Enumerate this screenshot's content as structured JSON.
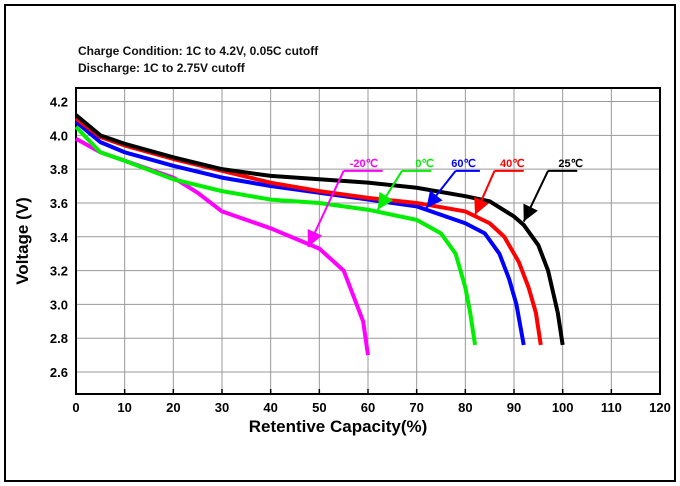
{
  "chart_data": {
    "type": "line",
    "notes": [
      "Charge Condition: 1C to 4.2V, 0.05C cutoff",
      "Discharge: 1C to 2.75V cutoff"
    ],
    "xlabel": "Retentive Capacity(%)",
    "ylabel": "Voltage (V)",
    "xlim": [
      0,
      120
    ],
    "ylim": [
      2.47,
      4.28
    ],
    "xticks": [
      0,
      10,
      20,
      30,
      40,
      50,
      60,
      70,
      80,
      90,
      100,
      110,
      120
    ],
    "yticks": [
      2.6,
      2.8,
      3.0,
      3.2,
      3.4,
      3.6,
      3.8,
      4.0,
      4.2
    ],
    "grid": true,
    "series": [
      {
        "name": "25℃",
        "color": "#000000",
        "points": [
          [
            0,
            4.12
          ],
          [
            5,
            4.0
          ],
          [
            10,
            3.95
          ],
          [
            20,
            3.87
          ],
          [
            30,
            3.8
          ],
          [
            40,
            3.76
          ],
          [
            50,
            3.74
          ],
          [
            60,
            3.72
          ],
          [
            70,
            3.69
          ],
          [
            80,
            3.64
          ],
          [
            85,
            3.61
          ],
          [
            90,
            3.52
          ],
          [
            92,
            3.47
          ],
          [
            95,
            3.35
          ],
          [
            97,
            3.2
          ],
          [
            99,
            2.95
          ],
          [
            100,
            2.76
          ]
        ],
        "label_pos": [
          100,
          3.79
        ],
        "arrow": [
          [
            97,
            3.79
          ],
          [
            103,
            3.79
          ],
          [
            92,
            3.49
          ]
        ]
      },
      {
        "name": "40℃",
        "color": "#ff0000",
        "points": [
          [
            0,
            4.1
          ],
          [
            5,
            3.99
          ],
          [
            10,
            3.94
          ],
          [
            20,
            3.86
          ],
          [
            30,
            3.79
          ],
          [
            40,
            3.72
          ],
          [
            50,
            3.67
          ],
          [
            60,
            3.63
          ],
          [
            70,
            3.6
          ],
          [
            80,
            3.55
          ],
          [
            85,
            3.48
          ],
          [
            88,
            3.4
          ],
          [
            91,
            3.25
          ],
          [
            93,
            3.1
          ],
          [
            94.5,
            2.95
          ],
          [
            95.5,
            2.76
          ]
        ],
        "label_pos": [
          88,
          3.79
        ],
        "arrow": [
          [
            86,
            3.79
          ],
          [
            92,
            3.79
          ],
          [
            82,
            3.53
          ]
        ]
      },
      {
        "name": "60℃",
        "color": "#0000ff",
        "points": [
          [
            0,
            4.08
          ],
          [
            5,
            3.96
          ],
          [
            10,
            3.9
          ],
          [
            20,
            3.82
          ],
          [
            30,
            3.75
          ],
          [
            40,
            3.7
          ],
          [
            50,
            3.66
          ],
          [
            60,
            3.62
          ],
          [
            70,
            3.58
          ],
          [
            80,
            3.48
          ],
          [
            84,
            3.42
          ],
          [
            87,
            3.3
          ],
          [
            89,
            3.15
          ],
          [
            90.5,
            3.0
          ],
          [
            92,
            2.76
          ]
        ],
        "label_pos": [
          78,
          3.79
        ],
        "arrow": [
          [
            78,
            3.79
          ],
          [
            83,
            3.79
          ],
          [
            72,
            3.57
          ]
        ]
      },
      {
        "name": "0℃",
        "color": "#00ee00",
        "points": [
          [
            0,
            4.05
          ],
          [
            5,
            3.9
          ],
          [
            10,
            3.85
          ],
          [
            20,
            3.74
          ],
          [
            30,
            3.67
          ],
          [
            40,
            3.62
          ],
          [
            50,
            3.6
          ],
          [
            60,
            3.56
          ],
          [
            70,
            3.5
          ],
          [
            75,
            3.42
          ],
          [
            78,
            3.3
          ],
          [
            80,
            3.1
          ],
          [
            81,
            2.95
          ],
          [
            82,
            2.76
          ]
        ],
        "label_pos": [
          70,
          3.79
        ],
        "arrow": [
          [
            67,
            3.79
          ],
          [
            73,
            3.79
          ],
          [
            62,
            3.56
          ]
        ]
      },
      {
        "name": "-20℃",
        "color": "#ff00ff",
        "points": [
          [
            0,
            3.98
          ],
          [
            5,
            3.9
          ],
          [
            10,
            3.85
          ],
          [
            20,
            3.75
          ],
          [
            25,
            3.66
          ],
          [
            30,
            3.55
          ],
          [
            40,
            3.45
          ],
          [
            50,
            3.33
          ],
          [
            55,
            3.2
          ],
          [
            57,
            3.05
          ],
          [
            59,
            2.9
          ],
          [
            60,
            2.7
          ]
        ],
        "label_pos": [
          57.5,
          3.79
        ],
        "arrow": [
          [
            55,
            3.79
          ],
          [
            63,
            3.79
          ],
          [
            47.7,
            3.34
          ]
        ]
      }
    ]
  }
}
